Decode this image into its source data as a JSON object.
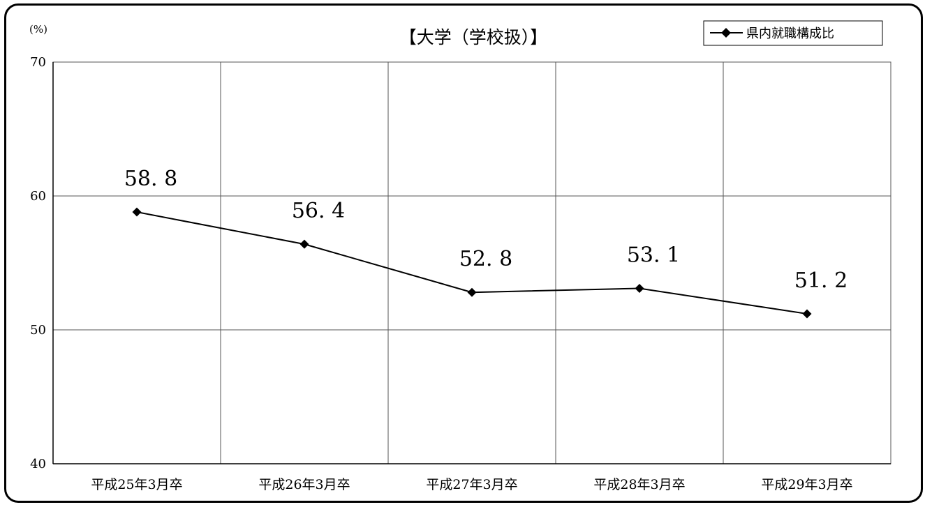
{
  "chart_data": {
    "type": "line",
    "title": "【大学（学校扱）】",
    "y_unit_label": "(%)",
    "ylim": [
      40,
      70
    ],
    "yticks": [
      40,
      50,
      60,
      70
    ],
    "categories": [
      "平成25年3月卒",
      "平成26年3月卒",
      "平成27年3月卒",
      "平成28年3月卒",
      "平成29年3月卒"
    ],
    "series": [
      {
        "name": "県内就職構成比",
        "values": [
          58.8,
          56.4,
          52.8,
          53.1,
          51.2
        ],
        "data_labels": [
          "58. 8",
          "56. 4",
          "52. 8",
          "53. 1",
          "51. 2"
        ],
        "color": "#000000",
        "marker": "diamond"
      }
    ],
    "grid": true,
    "legend_position": "top-right"
  }
}
